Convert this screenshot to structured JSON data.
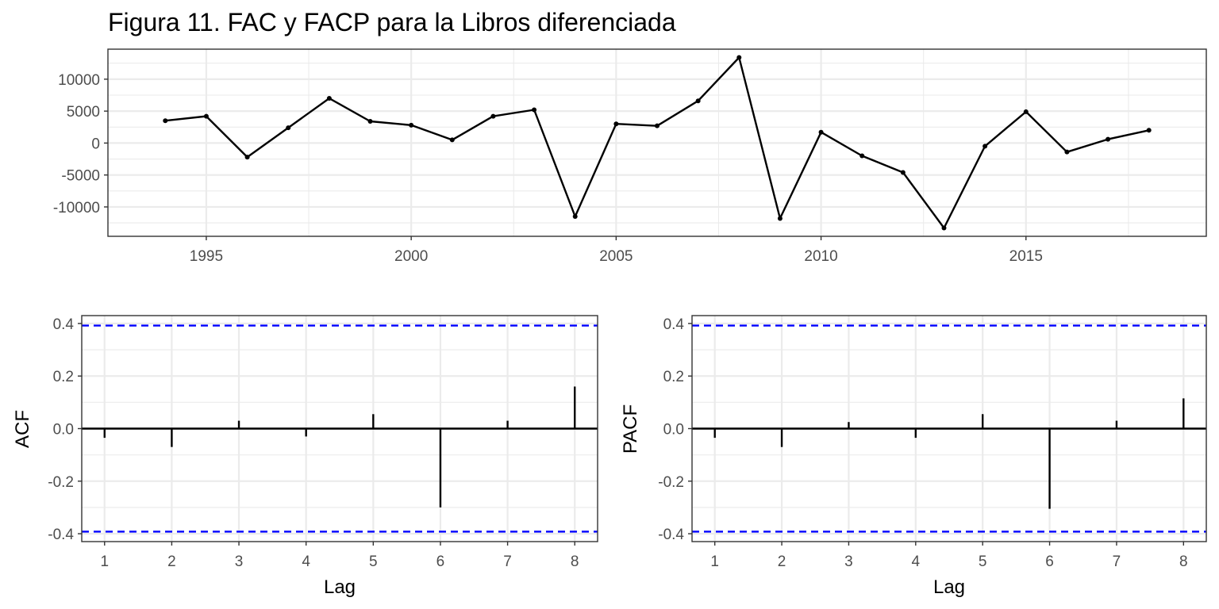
{
  "title": "Figura 11. FAC y FACP para la Libros diferenciada",
  "chart_data": [
    {
      "type": "line",
      "name": "series",
      "x": [
        1994,
        1995,
        1996,
        1997,
        1998,
        1999,
        2000,
        2001,
        2002,
        2003,
        2004,
        2005,
        2006,
        2007,
        2008,
        2009,
        2010,
        2011,
        2012,
        2013,
        2014,
        2015,
        2016,
        2017,
        2018
      ],
      "values": [
        3500,
        4200,
        -2200,
        2400,
        7000,
        3400,
        2800,
        500,
        4200,
        5200,
        -11500,
        3000,
        2700,
        6600,
        13400,
        -11800,
        1700,
        -2000,
        -4600,
        -13300,
        -500,
        4900,
        -1400,
        600,
        2000
      ],
      "xlim": [
        1992.6,
        2019.4
      ],
      "ylim": [
        -14600,
        14700
      ],
      "x_ticks": [
        1995,
        2000,
        2005,
        2010,
        2015
      ],
      "y_ticks": [
        -10000,
        -5000,
        0,
        5000,
        10000
      ],
      "x_tick_labels": [
        "1995",
        "2000",
        "2005",
        "2010",
        "2015"
      ],
      "y_tick_labels": [
        "-10000",
        "-5000",
        "0",
        "5000",
        "10000"
      ],
      "line_color": "#000000",
      "grid": true
    },
    {
      "type": "bar",
      "name": "acf",
      "xlabel": "Lag",
      "ylabel": "ACF",
      "categories": [
        1,
        2,
        3,
        4,
        5,
        6,
        7,
        8
      ],
      "values": [
        -0.035,
        -0.07,
        0.03,
        -0.03,
        0.055,
        -0.3,
        0.03,
        0.16
      ],
      "ci": [
        0.392,
        -0.392
      ],
      "ci_color": "#0000ff",
      "xlim": [
        0.66,
        8.34
      ],
      "ylim": [
        -0.43,
        0.43
      ],
      "x_tick_labels": [
        "1",
        "2",
        "3",
        "4",
        "5",
        "6",
        "7",
        "8"
      ],
      "y_ticks": [
        -0.4,
        -0.2,
        0.0,
        0.2,
        0.4
      ],
      "y_tick_labels": [
        "-0.4",
        "-0.2",
        "0.0",
        "0.2",
        "0.4"
      ],
      "grid": true
    },
    {
      "type": "bar",
      "name": "pacf",
      "xlabel": "Lag",
      "ylabel": "PACF",
      "categories": [
        1,
        2,
        3,
        4,
        5,
        6,
        7,
        8
      ],
      "values": [
        -0.035,
        -0.07,
        0.025,
        -0.035,
        0.055,
        -0.305,
        0.03,
        0.115
      ],
      "ci": [
        0.392,
        -0.392
      ],
      "ci_color": "#0000ff",
      "xlim": [
        0.66,
        8.34
      ],
      "ylim": [
        -0.43,
        0.43
      ],
      "x_tick_labels": [
        "1",
        "2",
        "3",
        "4",
        "5",
        "6",
        "7",
        "8"
      ],
      "y_ticks": [
        -0.4,
        -0.2,
        0.0,
        0.2,
        0.4
      ],
      "y_tick_labels": [
        "-0.4",
        "-0.2",
        "0.0",
        "0.2",
        "0.4"
      ],
      "grid": true
    }
  ]
}
